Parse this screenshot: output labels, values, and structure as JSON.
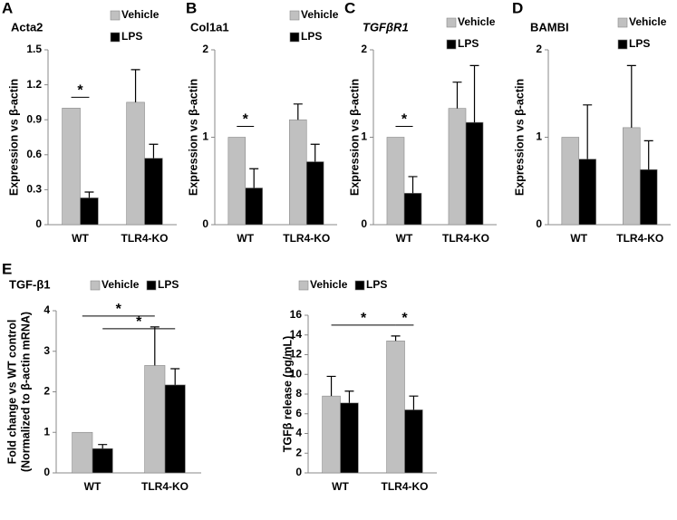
{
  "chart_data": [
    {
      "type": "bar",
      "panel": "A",
      "title": "Acta2",
      "ylabel": [
        "Expression vs β-actin"
      ],
      "categories": [
        "WT",
        "TLR4-KO"
      ],
      "series": [
        {
          "name": "Vehicle",
          "color": "#c0c0c0",
          "values": [
            1.0,
            1.05
          ],
          "errors": [
            null,
            0.28
          ]
        },
        {
          "name": "LPS",
          "color": "#000000",
          "values": [
            0.23,
            0.57
          ],
          "errors": [
            0.05,
            0.12
          ]
        }
      ],
      "ylim": [
        0,
        1.5
      ],
      "yticks": [
        0,
        0.3,
        0.6,
        0.9,
        1.2,
        1.5
      ],
      "brackets": [
        {
          "text": "*",
          "from": [
            0,
            0
          ],
          "to": [
            1,
            0
          ]
        }
      ]
    },
    {
      "type": "bar",
      "panel": "B",
      "title": "Col1a1",
      "ylabel": [
        "Expression vs β-actin"
      ],
      "categories": [
        "WT",
        "TLR4-KO"
      ],
      "series": [
        {
          "name": "Vehicle",
          "color": "#c0c0c0",
          "values": [
            1.0,
            1.2
          ],
          "errors": [
            null,
            0.18
          ]
        },
        {
          "name": "LPS",
          "color": "#000000",
          "values": [
            0.42,
            0.72
          ],
          "errors": [
            0.22,
            0.2
          ]
        }
      ],
      "ylim": [
        0,
        2
      ],
      "yticks": [
        0,
        1,
        2
      ],
      "brackets": [
        {
          "text": "*",
          "from": [
            0,
            0
          ],
          "to": [
            1,
            0
          ]
        }
      ]
    },
    {
      "type": "bar",
      "panel": "C",
      "title": "TGFβR1",
      "title_italic": true,
      "ylabel": [
        "Expression vs β-actin"
      ],
      "categories": [
        "WT",
        "TLR4-KO"
      ],
      "series": [
        {
          "name": "Vehicle",
          "color": "#c0c0c0",
          "values": [
            1.0,
            1.33
          ],
          "errors": [
            null,
            0.3
          ]
        },
        {
          "name": "LPS",
          "color": "#000000",
          "values": [
            0.36,
            1.17
          ],
          "errors": [
            0.19,
            0.65
          ]
        }
      ],
      "ylim": [
        0,
        2
      ],
      "yticks": [
        0,
        1,
        2
      ],
      "brackets": [
        {
          "text": "*",
          "from": [
            0,
            0
          ],
          "to": [
            1,
            0
          ]
        }
      ]
    },
    {
      "type": "bar",
      "panel": "D",
      "title": "BAMBI",
      "ylabel": [
        "Expression vs β-actin"
      ],
      "categories": [
        "WT",
        "TLR4-KO"
      ],
      "series": [
        {
          "name": "Vehicle",
          "color": "#c0c0c0",
          "values": [
            1.0,
            1.11
          ],
          "errors": [
            null,
            0.71
          ]
        },
        {
          "name": "LPS",
          "color": "#000000",
          "values": [
            0.75,
            0.63
          ],
          "errors": [
            0.62,
            0.33
          ]
        }
      ],
      "ylim": [
        0,
        2
      ],
      "yticks": [
        0,
        1,
        2
      ],
      "brackets": []
    },
    {
      "type": "bar",
      "panel": "E",
      "title": "TGF-β1",
      "ylabel": [
        "Fold change vs WT control",
        "(Normalized to β-actin mRNA)"
      ],
      "categories": [
        "WT",
        "TLR4-KO"
      ],
      "series": [
        {
          "name": "Vehicle",
          "color": "#c0c0c0",
          "values": [
            1.0,
            2.65
          ],
          "errors": [
            null,
            0.95
          ]
        },
        {
          "name": "LPS",
          "color": "#000000",
          "values": [
            0.6,
            2.17
          ],
          "errors": [
            0.1,
            0.4
          ]
        }
      ],
      "ylim": [
        0,
        4
      ],
      "yticks": [
        0,
        1,
        2,
        3,
        4
      ],
      "brackets": [
        {
          "text": "*",
          "from": [
            0,
            0
          ],
          "to": [
            0,
            1
          ]
        },
        {
          "text": "*",
          "from": [
            1,
            0
          ],
          "to": [
            1,
            1
          ]
        }
      ]
    },
    {
      "type": "bar",
      "ylabel": [
        "TGFβ release (pg/mL)"
      ],
      "categories": [
        "WT",
        "TLR4-KO"
      ],
      "series": [
        {
          "name": "Vehicle",
          "color": "#c0c0c0",
          "values": [
            7.8,
            13.4
          ],
          "errors": [
            2.0,
            0.5
          ]
        },
        {
          "name": "LPS",
          "color": "#000000",
          "values": [
            7.1,
            6.4
          ],
          "errors": [
            1.2,
            1.4
          ]
        }
      ],
      "ylim": [
        0,
        16
      ],
      "yticks": [
        0,
        2,
        4,
        6,
        8,
        10,
        12,
        14,
        16
      ],
      "brackets": [
        {
          "text": "*",
          "from": [
            0,
            0
          ],
          "to": [
            0,
            1
          ]
        },
        {
          "text": "*",
          "from": [
            0,
            1
          ],
          "to": [
            1,
            1
          ]
        }
      ]
    }
  ]
}
